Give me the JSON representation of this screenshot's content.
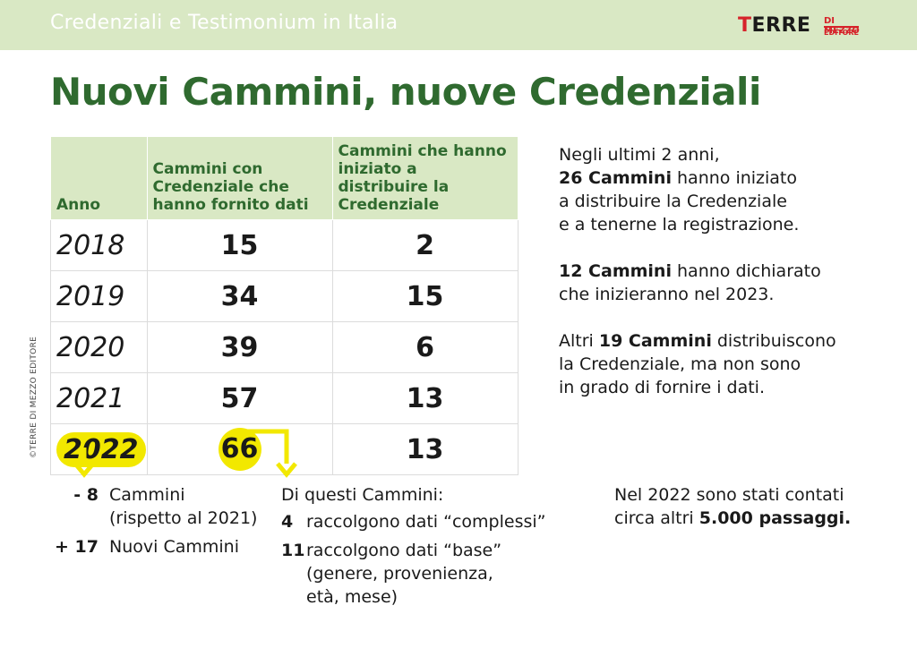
{
  "header": {
    "title": "Credenziali e Testimonium in Italia",
    "logo_main_first": "T",
    "logo_main_rest": "ERRE",
    "logo_sub": "DI MEZZO",
    "logo_sub2": "EDITORE"
  },
  "main_title": "Nuovi Cammini, nuove Credenziali",
  "copyright": "©TERRE DI MEZZO EDITORE",
  "table": {
    "headers": [
      "Anno",
      "Cammini con Credenziale che hanno fornito dati",
      "Cammini che hanno iniziato a distribuire la Credenziale"
    ],
    "rows": [
      {
        "year": "2018",
        "a": "15",
        "b": "2"
      },
      {
        "year": "2019",
        "a": "34",
        "b": "15"
      },
      {
        "year": "2020",
        "a": "39",
        "b": "6"
      },
      {
        "year": "2021",
        "a": "57",
        "b": "13"
      },
      {
        "year": "2022",
        "a": "66",
        "b": "13"
      }
    ]
  },
  "right": {
    "p1_a": "Negli ultimi 2 anni,",
    "p1_b": "26 Cammini",
    "p1_c": " hanno iniziato",
    "p1_d": "a distribuire la Credenziale",
    "p1_e": "e a tenerne la registrazione.",
    "p2_b": "12 Cammini",
    "p2_c": " hanno dichiarato",
    "p2_d": "che inizieranno nel 2023.",
    "p3_a": "Altri ",
    "p3_b": "19 Cammini",
    "p3_c": " distribuiscono",
    "p3_d": "la Credenziale, ma non sono",
    "p3_e": "in grado di fornire i dati."
  },
  "notes_left": [
    {
      "label": "- 8",
      "text1": "Cammini",
      "text2": "(rispetto al 2021)"
    },
    {
      "label": "+ 17",
      "text1": "Nuovi Cammini",
      "text2": ""
    }
  ],
  "notes_mid": {
    "head": "Di questi Cammini:",
    "items": [
      {
        "label": "4",
        "lines": [
          "raccolgono dati “complessi”"
        ]
      },
      {
        "label": "11",
        "lines": [
          "raccolgono dati “base”",
          "(genere, provenienza,",
          "età, mese)"
        ]
      }
    ]
  },
  "notes_right": {
    "line1": "Nel 2022 sono stati contati",
    "line2_a": "circa altri ",
    "line2_b": "5.000 passaggi."
  },
  "colors": {
    "green": "#2f6a2f",
    "light_green": "#d9e8c4",
    "yellow": "#f2e800",
    "red": "#d6232a"
  }
}
